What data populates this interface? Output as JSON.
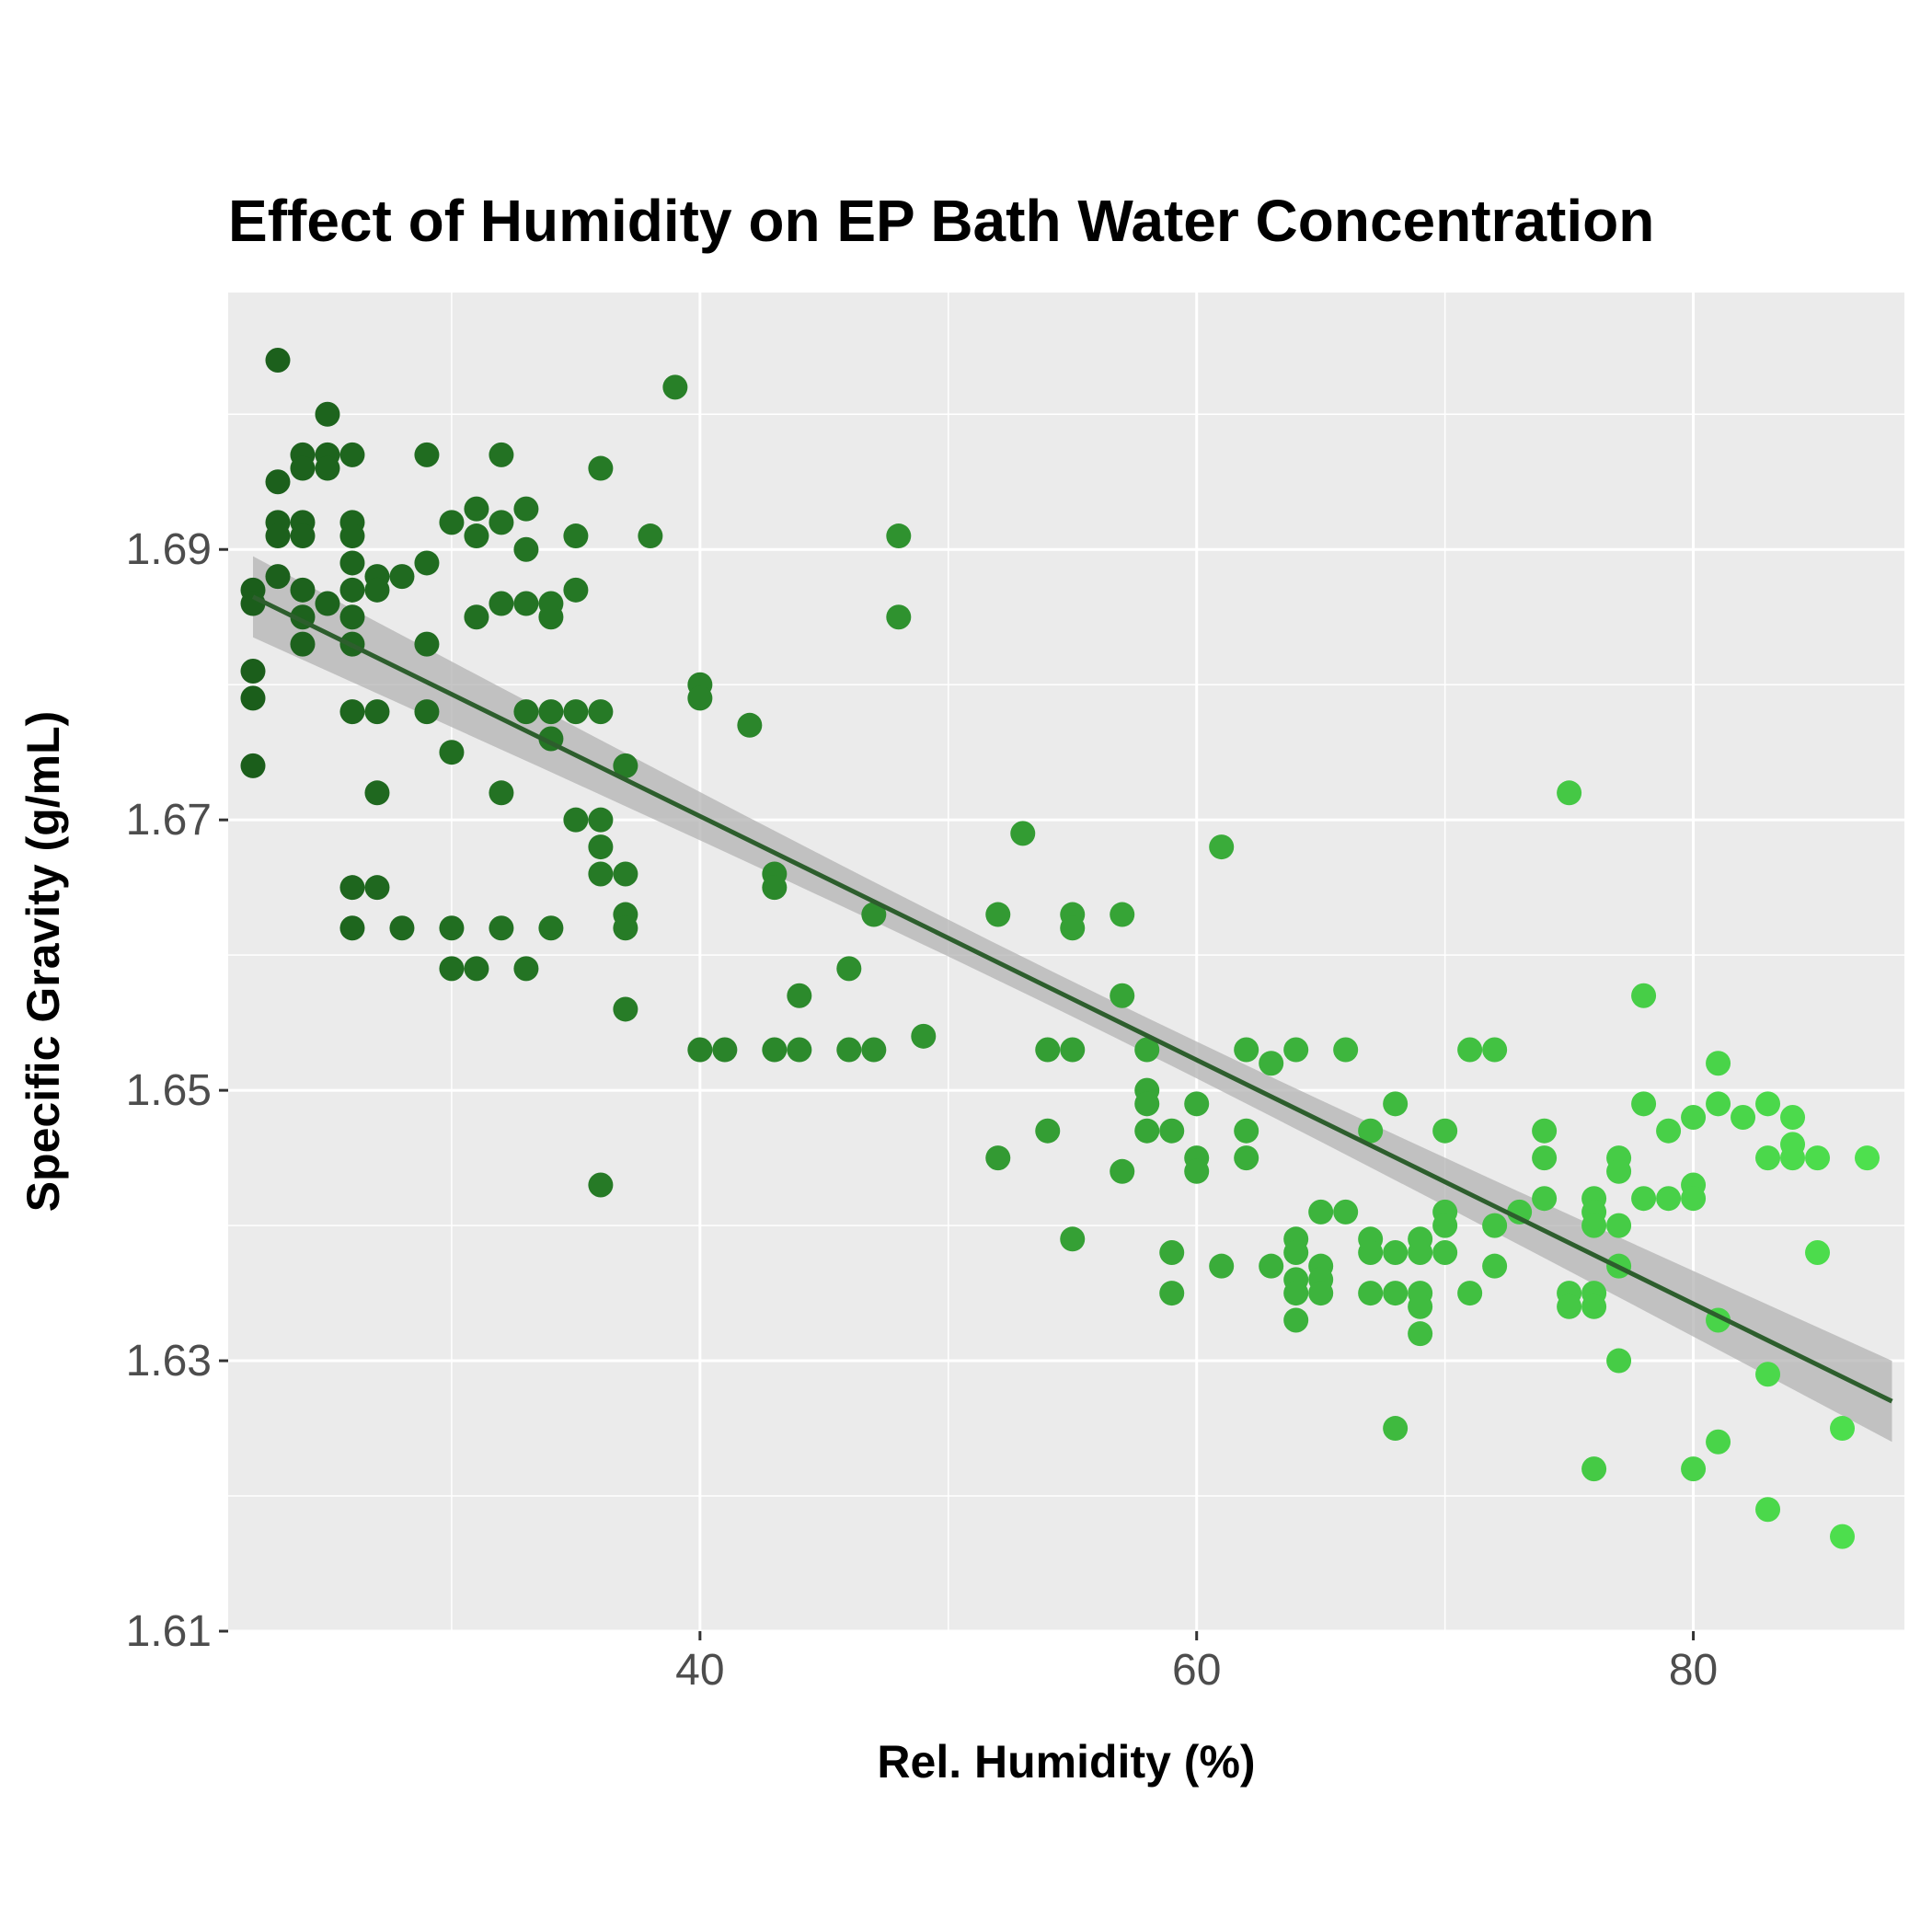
{
  "chart_data": {
    "type": "scatter",
    "title": "Effect of Humidity on EP Bath Water Concentration",
    "xlabel": "Rel. Humidity (%)",
    "ylabel": "Specific Gravity (g/mL)",
    "xlim": [
      21,
      88.5
    ],
    "ylim": [
      1.61,
      1.709
    ],
    "x_ticks": [
      40,
      60,
      80
    ],
    "y_ticks": [
      1.61,
      1.63,
      1.65,
      1.67,
      1.69
    ],
    "y_tick_labels": [
      "1.61",
      "1.63",
      "1.65",
      "1.67",
      "1.69"
    ],
    "grid": true,
    "legend": "none",
    "colors": {
      "panel_background": "#ebebeb",
      "grid": "#ffffff",
      "point_low_humidity": "#1b5e1b",
      "point_high_humidity": "#4ee04e",
      "fit_line": "#2d5e2d",
      "confidence_band": "#b3b3b3"
    },
    "points": [
      {
        "x": 22,
        "y": 1.687
      },
      {
        "x": 22,
        "y": 1.686
      },
      {
        "x": 22,
        "y": 1.681
      },
      {
        "x": 22,
        "y": 1.679
      },
      {
        "x": 22,
        "y": 1.674
      },
      {
        "x": 23,
        "y": 1.704
      },
      {
        "x": 23,
        "y": 1.695
      },
      {
        "x": 23,
        "y": 1.692
      },
      {
        "x": 23,
        "y": 1.691
      },
      {
        "x": 23,
        "y": 1.688
      },
      {
        "x": 24,
        "y": 1.697
      },
      {
        "x": 24,
        "y": 1.696
      },
      {
        "x": 24,
        "y": 1.692
      },
      {
        "x": 24,
        "y": 1.691
      },
      {
        "x": 24,
        "y": 1.687
      },
      {
        "x": 24,
        "y": 1.685
      },
      {
        "x": 24,
        "y": 1.683
      },
      {
        "x": 25,
        "y": 1.7
      },
      {
        "x": 25,
        "y": 1.697
      },
      {
        "x": 25,
        "y": 1.696
      },
      {
        "x": 25,
        "y": 1.686
      },
      {
        "x": 26,
        "y": 1.697
      },
      {
        "x": 26,
        "y": 1.692
      },
      {
        "x": 26,
        "y": 1.691
      },
      {
        "x": 26,
        "y": 1.689
      },
      {
        "x": 26,
        "y": 1.687
      },
      {
        "x": 26,
        "y": 1.685
      },
      {
        "x": 26,
        "y": 1.683
      },
      {
        "x": 26,
        "y": 1.678
      },
      {
        "x": 26,
        "y": 1.665
      },
      {
        "x": 26,
        "y": 1.662
      },
      {
        "x": 27,
        "y": 1.688
      },
      {
        "x": 27,
        "y": 1.687
      },
      {
        "x": 27,
        "y": 1.678
      },
      {
        "x": 27,
        "y": 1.672
      },
      {
        "x": 27,
        "y": 1.665
      },
      {
        "x": 28,
        "y": 1.688
      },
      {
        "x": 28,
        "y": 1.662
      },
      {
        "x": 29,
        "y": 1.697
      },
      {
        "x": 29,
        "y": 1.689
      },
      {
        "x": 29,
        "y": 1.683
      },
      {
        "x": 29,
        "y": 1.678
      },
      {
        "x": 30,
        "y": 1.692
      },
      {
        "x": 30,
        "y": 1.675
      },
      {
        "x": 30,
        "y": 1.662
      },
      {
        "x": 30,
        "y": 1.659
      },
      {
        "x": 31,
        "y": 1.693
      },
      {
        "x": 31,
        "y": 1.691
      },
      {
        "x": 31,
        "y": 1.685
      },
      {
        "x": 31,
        "y": 1.659
      },
      {
        "x": 32,
        "y": 1.697
      },
      {
        "x": 32,
        "y": 1.692
      },
      {
        "x": 32,
        "y": 1.686
      },
      {
        "x": 32,
        "y": 1.672
      },
      {
        "x": 32,
        "y": 1.662
      },
      {
        "x": 33,
        "y": 1.693
      },
      {
        "x": 33,
        "y": 1.69
      },
      {
        "x": 33,
        "y": 1.686
      },
      {
        "x": 33,
        "y": 1.678
      },
      {
        "x": 33,
        "y": 1.659
      },
      {
        "x": 34,
        "y": 1.686
      },
      {
        "x": 34,
        "y": 1.685
      },
      {
        "x": 34,
        "y": 1.678
      },
      {
        "x": 34,
        "y": 1.676
      },
      {
        "x": 34,
        "y": 1.662
      },
      {
        "x": 35,
        "y": 1.691
      },
      {
        "x": 35,
        "y": 1.687
      },
      {
        "x": 35,
        "y": 1.678
      },
      {
        "x": 35,
        "y": 1.67
      },
      {
        "x": 36,
        "y": 1.696
      },
      {
        "x": 36,
        "y": 1.678
      },
      {
        "x": 36,
        "y": 1.67
      },
      {
        "x": 36,
        "y": 1.668
      },
      {
        "x": 36,
        "y": 1.666
      },
      {
        "x": 36,
        "y": 1.643
      },
      {
        "x": 37,
        "y": 1.674
      },
      {
        "x": 37,
        "y": 1.666
      },
      {
        "x": 37,
        "y": 1.663
      },
      {
        "x": 37,
        "y": 1.662
      },
      {
        "x": 37,
        "y": 1.656
      },
      {
        "x": 38,
        "y": 1.691
      },
      {
        "x": 39,
        "y": 1.702
      },
      {
        "x": 40,
        "y": 1.68
      },
      {
        "x": 40,
        "y": 1.679
      },
      {
        "x": 40,
        "y": 1.653
      },
      {
        "x": 41,
        "y": 1.653
      },
      {
        "x": 42,
        "y": 1.677
      },
      {
        "x": 43,
        "y": 1.666
      },
      {
        "x": 43,
        "y": 1.665
      },
      {
        "x": 43,
        "y": 1.653
      },
      {
        "x": 44,
        "y": 1.657
      },
      {
        "x": 44,
        "y": 1.653
      },
      {
        "x": 46,
        "y": 1.659
      },
      {
        "x": 46,
        "y": 1.653
      },
      {
        "x": 47,
        "y": 1.663
      },
      {
        "x": 47,
        "y": 1.653
      },
      {
        "x": 48,
        "y": 1.691
      },
      {
        "x": 48,
        "y": 1.685
      },
      {
        "x": 49,
        "y": 1.654
      },
      {
        "x": 52,
        "y": 1.663
      },
      {
        "x": 52,
        "y": 1.645
      },
      {
        "x": 53,
        "y": 1.669
      },
      {
        "x": 54,
        "y": 1.653
      },
      {
        "x": 54,
        "y": 1.647
      },
      {
        "x": 55,
        "y": 1.663
      },
      {
        "x": 55,
        "y": 1.662
      },
      {
        "x": 55,
        "y": 1.653
      },
      {
        "x": 55,
        "y": 1.639
      },
      {
        "x": 57,
        "y": 1.663
      },
      {
        "x": 57,
        "y": 1.657
      },
      {
        "x": 57,
        "y": 1.644
      },
      {
        "x": 58,
        "y": 1.653
      },
      {
        "x": 58,
        "y": 1.65
      },
      {
        "x": 58,
        "y": 1.649
      },
      {
        "x": 58,
        "y": 1.647
      },
      {
        "x": 59,
        "y": 1.647
      },
      {
        "x": 59,
        "y": 1.638
      },
      {
        "x": 59,
        "y": 1.635
      },
      {
        "x": 60,
        "y": 1.649
      },
      {
        "x": 60,
        "y": 1.645
      },
      {
        "x": 60,
        "y": 1.644
      },
      {
        "x": 61,
        "y": 1.668
      },
      {
        "x": 61,
        "y": 1.637
      },
      {
        "x": 62,
        "y": 1.653
      },
      {
        "x": 62,
        "y": 1.647
      },
      {
        "x": 62,
        "y": 1.645
      },
      {
        "x": 63,
        "y": 1.652
      },
      {
        "x": 63,
        "y": 1.637
      },
      {
        "x": 64,
        "y": 1.653
      },
      {
        "x": 64,
        "y": 1.639
      },
      {
        "x": 64,
        "y": 1.638
      },
      {
        "x": 64,
        "y": 1.636
      },
      {
        "x": 64,
        "y": 1.635
      },
      {
        "x": 64,
        "y": 1.633
      },
      {
        "x": 65,
        "y": 1.641
      },
      {
        "x": 65,
        "y": 1.637
      },
      {
        "x": 65,
        "y": 1.636
      },
      {
        "x": 65,
        "y": 1.635
      },
      {
        "x": 66,
        "y": 1.653
      },
      {
        "x": 66,
        "y": 1.641
      },
      {
        "x": 67,
        "y": 1.647
      },
      {
        "x": 67,
        "y": 1.639
      },
      {
        "x": 67,
        "y": 1.638
      },
      {
        "x": 67,
        "y": 1.635
      },
      {
        "x": 68,
        "y": 1.649
      },
      {
        "x": 68,
        "y": 1.638
      },
      {
        "x": 68,
        "y": 1.635
      },
      {
        "x": 68,
        "y": 1.625
      },
      {
        "x": 69,
        "y": 1.639
      },
      {
        "x": 69,
        "y": 1.638
      },
      {
        "x": 69,
        "y": 1.635
      },
      {
        "x": 69,
        "y": 1.634
      },
      {
        "x": 69,
        "y": 1.632
      },
      {
        "x": 70,
        "y": 1.647
      },
      {
        "x": 70,
        "y": 1.641
      },
      {
        "x": 70,
        "y": 1.64
      },
      {
        "x": 70,
        "y": 1.638
      },
      {
        "x": 71,
        "y": 1.653
      },
      {
        "x": 71,
        "y": 1.635
      },
      {
        "x": 72,
        "y": 1.653
      },
      {
        "x": 72,
        "y": 1.64
      },
      {
        "x": 72,
        "y": 1.637
      },
      {
        "x": 73,
        "y": 1.641
      },
      {
        "x": 74,
        "y": 1.647
      },
      {
        "x": 74,
        "y": 1.645
      },
      {
        "x": 74,
        "y": 1.642
      },
      {
        "x": 75,
        "y": 1.672
      },
      {
        "x": 75,
        "y": 1.635
      },
      {
        "x": 75,
        "y": 1.634
      },
      {
        "x": 76,
        "y": 1.642
      },
      {
        "x": 76,
        "y": 1.641
      },
      {
        "x": 76,
        "y": 1.64
      },
      {
        "x": 76,
        "y": 1.635
      },
      {
        "x": 76,
        "y": 1.634
      },
      {
        "x": 76,
        "y": 1.622
      },
      {
        "x": 77,
        "y": 1.645
      },
      {
        "x": 77,
        "y": 1.644
      },
      {
        "x": 77,
        "y": 1.64
      },
      {
        "x": 77,
        "y": 1.637
      },
      {
        "x": 77,
        "y": 1.63
      },
      {
        "x": 78,
        "y": 1.657
      },
      {
        "x": 78,
        "y": 1.649
      },
      {
        "x": 78,
        "y": 1.642
      },
      {
        "x": 79,
        "y": 1.647
      },
      {
        "x": 79,
        "y": 1.642
      },
      {
        "x": 80,
        "y": 1.648
      },
      {
        "x": 80,
        "y": 1.643
      },
      {
        "x": 80,
        "y": 1.642
      },
      {
        "x": 80,
        "y": 1.622
      },
      {
        "x": 81,
        "y": 1.652
      },
      {
        "x": 81,
        "y": 1.649
      },
      {
        "x": 81,
        "y": 1.633
      },
      {
        "x": 81,
        "y": 1.624
      },
      {
        "x": 82,
        "y": 1.648
      },
      {
        "x": 83,
        "y": 1.649
      },
      {
        "x": 83,
        "y": 1.645
      },
      {
        "x": 83,
        "y": 1.629
      },
      {
        "x": 83,
        "y": 1.619
      },
      {
        "x": 84,
        "y": 1.648
      },
      {
        "x": 84,
        "y": 1.646
      },
      {
        "x": 84,
        "y": 1.645
      },
      {
        "x": 85,
        "y": 1.645
      },
      {
        "x": 85,
        "y": 1.638
      },
      {
        "x": 86,
        "y": 1.625
      },
      {
        "x": 86,
        "y": 1.617
      },
      {
        "x": 87,
        "y": 1.645
      }
    ],
    "regression": {
      "x": [
        22,
        88
      ],
      "y": [
        1.6865,
        1.627
      ],
      "band_halfwidth_ends": 0.003,
      "band_halfwidth_mid": 0.0013
    }
  }
}
